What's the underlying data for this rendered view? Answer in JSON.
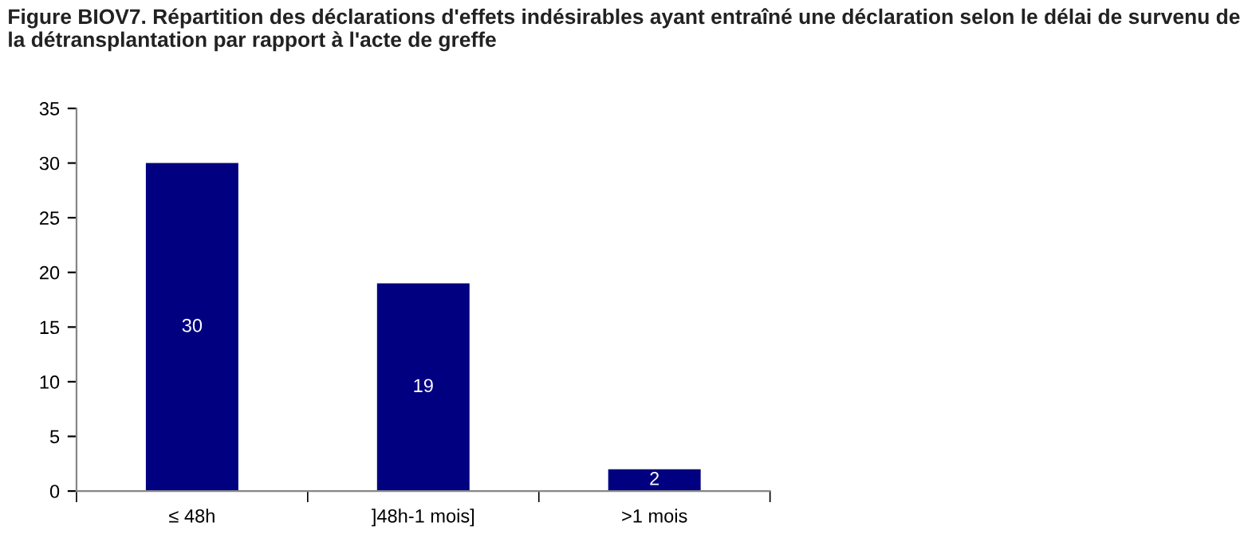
{
  "chart_data": {
    "type": "bar",
    "title": "Figure BIOV7. Répartition des déclarations d'effets indésirables ayant entraîné une déclaration selon le délai de survenu de la détransplantation par rapport à l'acte de greffe",
    "categories": [
      "≤ 48h",
      "]48h-1 mois]",
      ">1 mois"
    ],
    "values": [
      30,
      19,
      2
    ],
    "color": "#000080",
    "ylim": [
      0,
      35
    ],
    "yticks": [
      0,
      5,
      10,
      15,
      20,
      25,
      30,
      35
    ],
    "grid": false,
    "data_labels": true
  }
}
